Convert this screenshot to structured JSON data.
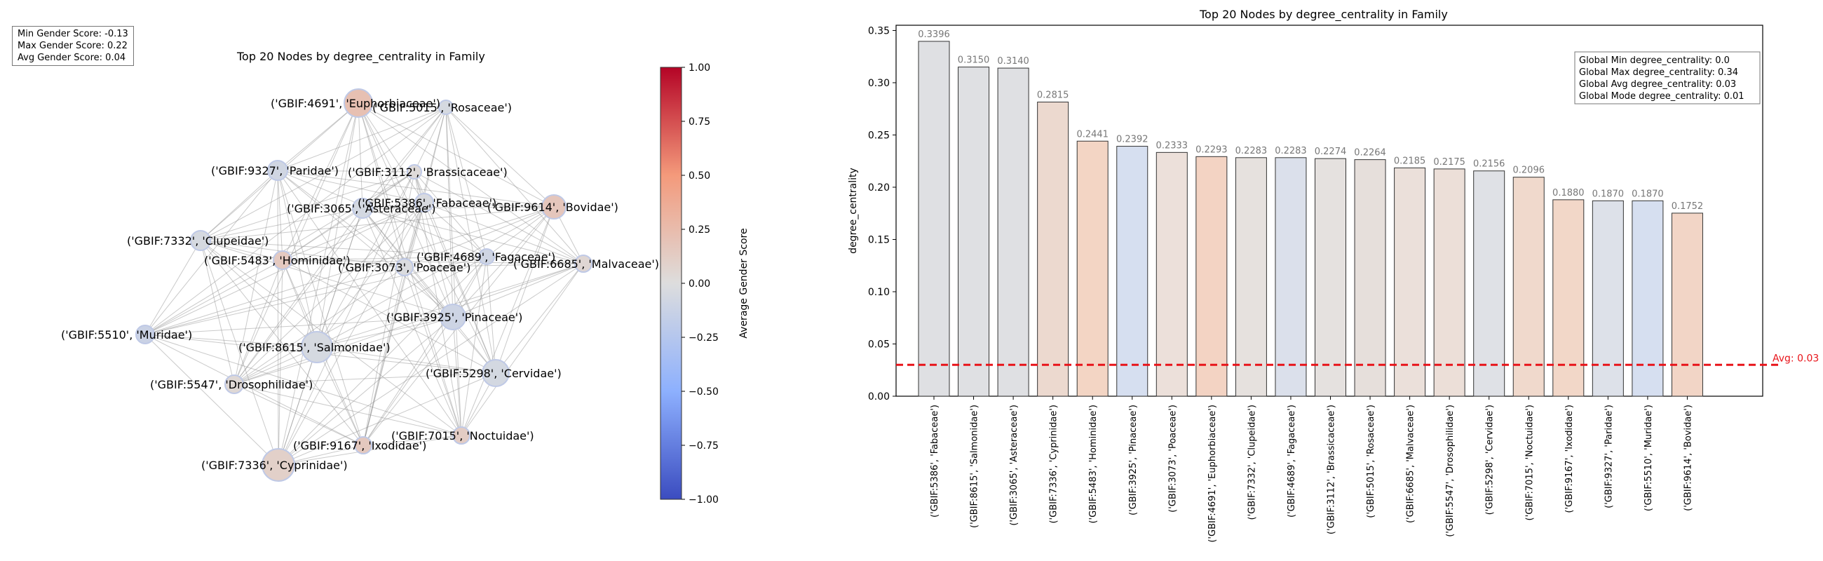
{
  "left_stats": {
    "min": "Min Gender Score: -0.13",
    "max": "Max Gender Score: 0.22",
    "avg": "Avg Gender Score: 0.04"
  },
  "network": {
    "title": "Top 20 Nodes by degree_centrality in Family",
    "nodes": [
      {
        "label": "('GBIF:4691', 'Euphorbiaceae')",
        "score": 0.22
      },
      {
        "label": "('GBIF:5015', 'Rosaceae')",
        "score": -0.05
      },
      {
        "label": "('GBIF:9327', 'Paridae')",
        "score": -0.08
      },
      {
        "label": "('GBIF:3112', 'Brassicaceae')",
        "score": 0.02
      },
      {
        "label": "('GBIF:5386', 'Fabaceae')",
        "score": -0.03
      },
      {
        "label": "('GBIF:3065', 'Asteraceae')",
        "score": -0.06
      },
      {
        "label": "('GBIF:9614', 'Bovidae')",
        "score": 0.17
      },
      {
        "label": "('GBIF:7332', 'Clupeidae')",
        "score": -0.05
      },
      {
        "label": "('GBIF:4689', 'Fagaceae')",
        "score": -0.09
      },
      {
        "label": "('GBIF:5483', 'Hominidae')",
        "score": 0.15
      },
      {
        "label": "('GBIF:6685', 'Malvaceae')",
        "score": 0.05
      },
      {
        "label": "('GBIF:3073', 'Poaceae')",
        "score": -0.02
      },
      {
        "label": "('GBIF:3925', 'Pinaceae')",
        "score": -0.1
      },
      {
        "label": "('GBIF:5510', 'Muridae')",
        "score": -0.12
      },
      {
        "label": "('GBIF:8615', 'Salmonidae')",
        "score": -0.05
      },
      {
        "label": "('GBIF:5298', 'Cervidae')",
        "score": -0.06
      },
      {
        "label": "('GBIF:5547', 'Drosophilidae')",
        "score": 0.04
      },
      {
        "label": "('GBIF:7015', 'Noctuidae')",
        "score": 0.13
      },
      {
        "label": "('GBIF:9167', 'Ixodidae')",
        "score": 0.16
      },
      {
        "label": "('GBIF:7336', 'Cyprinidae')",
        "score": 0.1
      }
    ]
  },
  "colorbar": {
    "label": "Average Gender Score",
    "range": [
      -1.0,
      1.0
    ],
    "ticks": [
      "1.00",
      "0.75",
      "0.50",
      "0.25",
      "0.00",
      "−0.25",
      "−0.50",
      "−0.75",
      "−1.00"
    ]
  },
  "chart_data": {
    "type": "bar",
    "title": "Top 20 Nodes by degree_centrality in Family",
    "xlabel": "",
    "ylabel": "degree_centrality",
    "ylim": [
      0,
      0.355
    ],
    "yticks": [
      "0.00",
      "0.05",
      "0.10",
      "0.15",
      "0.20",
      "0.25",
      "0.30",
      "0.35"
    ],
    "categories": [
      "('GBIF:5386', 'Fabaceae')",
      "('GBIF:8615', 'Salmonidae')",
      "('GBIF:3065', 'Asteraceae')",
      "('GBIF:7336', 'Cyprinidae')",
      "('GBIF:5483', 'Hominidae')",
      "('GBIF:3925', 'Pinaceae')",
      "('GBIF:3073', 'Poaceae')",
      "('GBIF:4691', 'Euphorbiaceae')",
      "('GBIF:7332', 'Clupeidae')",
      "('GBIF:4689', 'Fagaceae')",
      "('GBIF:3112', 'Brassicaceae')",
      "('GBIF:5015', 'Rosaceae')",
      "('GBIF:6685', 'Malvaceae')",
      "('GBIF:5547', 'Drosophilidae')",
      "('GBIF:5298', 'Cervidae')",
      "('GBIF:7015', 'Noctuidae')",
      "('GBIF:9167', 'Ixodidae')",
      "('GBIF:9327', 'Paridae')",
      "('GBIF:5510', 'Muridae')",
      "('GBIF:9614', 'Bovidae')"
    ],
    "values": [
      0.3396,
      0.315,
      0.314,
      0.2815,
      0.2441,
      0.2392,
      0.2333,
      0.2293,
      0.2283,
      0.2283,
      0.2274,
      0.2264,
      0.2185,
      0.2175,
      0.2156,
      0.2096,
      0.188,
      0.187,
      0.187,
      0.1752
    ],
    "value_labels": [
      "0.3396",
      "0.3150",
      "0.3140",
      "0.2815",
      "0.2441",
      "0.2392",
      "0.2333",
      "0.2293",
      "0.2283",
      "0.2283",
      "0.2274",
      "0.2264",
      "0.2185",
      "0.2175",
      "0.2156",
      "0.2096",
      "0.1880",
      "0.1870",
      "0.1870",
      "0.1752"
    ],
    "bar_colors": [
      "#dfe0e3",
      "#dfe0e3",
      "#dfe0e3",
      "#ecd9cf",
      "#f3d5c4",
      "#d6dff0",
      "#ece0da",
      "#f3d3c3",
      "#e6e1de",
      "#dbe0eb",
      "#e5e1df",
      "#e6dfdb",
      "#ebe0da",
      "#ecdfd8",
      "#dfe1e6",
      "#f0d9cc",
      "#f2d7c8",
      "#dde1e9",
      "#d6dff0",
      "#f2d5c6"
    ],
    "avg_line": {
      "value": 0.03,
      "label": "Avg: 0.03",
      "color": "#e8141a"
    },
    "grid": false,
    "legend_box": {
      "position": "top-right",
      "lines": [
        "Global Min degree_centrality: 0.0",
        "Global Max degree_centrality: 0.34",
        "Global Avg degree_centrality: 0.03",
        "Global Mode degree_centrality: 0.01"
      ]
    }
  }
}
